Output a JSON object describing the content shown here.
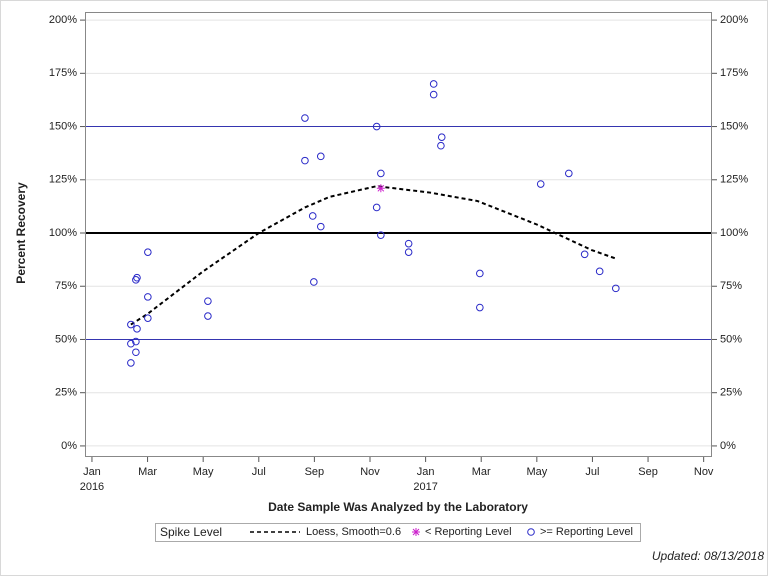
{
  "chart_data": {
    "type": "scatter",
    "x_label": "Date Sample Was Analyzed by the Laboratory",
    "y_label": "Percent Recovery",
    "xlim": [
      -0.25,
      22.3
    ],
    "xticks": [
      {
        "value": 0,
        "label": "Jan"
      },
      {
        "value": 2,
        "label": "Mar"
      },
      {
        "value": 4,
        "label": "May"
      },
      {
        "value": 6,
        "label": "Jul"
      },
      {
        "value": 8,
        "label": "Sep"
      },
      {
        "value": 10,
        "label": "Nov"
      },
      {
        "value": 12,
        "label": "Jan"
      },
      {
        "value": 14,
        "label": "Mar"
      },
      {
        "value": 16,
        "label": "May"
      },
      {
        "value": 18,
        "label": "Jul"
      },
      {
        "value": 20,
        "label": "Sep"
      },
      {
        "value": 22,
        "label": "Nov"
      }
    ],
    "x_year_labels": [
      {
        "value": 0,
        "label": "2016"
      },
      {
        "value": 12,
        "label": "2017"
      }
    ],
    "ylim": [
      -5.2,
      203.8
    ],
    "yticks": [
      {
        "value": 0,
        "label": "0%"
      },
      {
        "value": 25,
        "label": "25%"
      },
      {
        "value": 50,
        "label": "50%"
      },
      {
        "value": 75,
        "label": "75%"
      },
      {
        "value": 100,
        "label": "100%"
      },
      {
        "value": 125,
        "label": "125%"
      },
      {
        "value": 150,
        "label": "150%"
      },
      {
        "value": 175,
        "label": "175%"
      },
      {
        "value": 200,
        "label": "200%"
      }
    ],
    "grid": true,
    "reference_lines": [
      {
        "value": 50,
        "color": "#3535b0",
        "width": 1
      },
      {
        "value": 100,
        "color": "#000000",
        "width": 2
      },
      {
        "value": 150,
        "color": "#3535b0",
        "width": 1
      }
    ],
    "legend_title": "Spike Level",
    "series": [
      {
        "name": "Loess, Smooth=0.6",
        "kind": "line",
        "color": "#000000",
        "x": [
          1.4,
          2.0,
          4.0,
          6.0,
          7.66,
          8.55,
          10.24,
          12.15,
          13.87,
          16.0,
          17.97,
          18.84
        ],
        "values": [
          57,
          62,
          82,
          100,
          112,
          117,
          122,
          119,
          115,
          104,
          92,
          88
        ]
      },
      {
        "name": "< Reporting Level",
        "kind": "star",
        "color": "#cc22cc",
        "x": [
          10.39
        ],
        "values": [
          121
        ]
      },
      {
        "name": ">= Reporting Level",
        "kind": "circle",
        "color": "#2a2ac8",
        "x": [
          1.4,
          1.62,
          1.4,
          1.58,
          1.58,
          1.4,
          1.58,
          1.62,
          2.01,
          2.01,
          2.01,
          4.17,
          4.17,
          7.66,
          7.66,
          8.23,
          7.94,
          8.23,
          7.98,
          10.24,
          10.39,
          10.24,
          10.39,
          11.39,
          11.39,
          12.29,
          12.29,
          12.58,
          12.55,
          13.95,
          13.95,
          16.14,
          17.15,
          17.72,
          18.26,
          18.84
        ],
        "values": [
          57,
          55,
          48,
          49,
          44,
          39,
          78,
          79,
          70,
          60,
          91,
          68,
          61,
          154,
          134,
          136,
          108,
          103,
          77,
          150,
          128,
          112,
          99,
          95,
          91,
          170,
          165,
          145,
          141,
          81,
          65,
          123,
          128,
          90,
          82,
          74
        ]
      }
    ],
    "footnote": "Updated: 08/13/2018"
  }
}
